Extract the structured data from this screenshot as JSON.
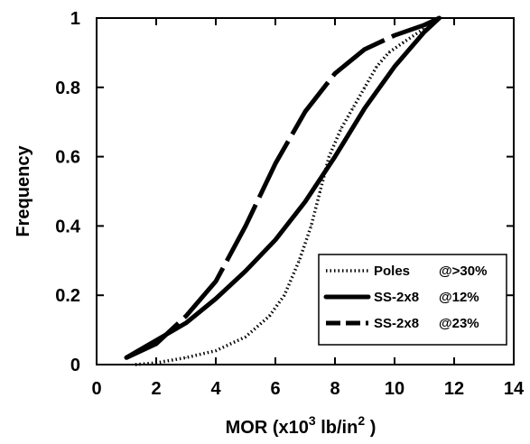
{
  "chart_data": {
    "type": "line",
    "xlabel_main": "MOR (x10",
    "xlabel_sup": "3",
    "xlabel_unit": " lb/in",
    "xlabel_unit_sup": "2",
    "xlabel_close": " )",
    "ylabel": "Frequency",
    "xlim": [
      0,
      14
    ],
    "ylim": [
      0,
      1
    ],
    "x_ticks": [
      0,
      2,
      4,
      6,
      8,
      10,
      12,
      14
    ],
    "x_tick_labels": [
      "0",
      "2",
      "4",
      "6",
      "8",
      "10",
      "12",
      "14"
    ],
    "y_ticks": [
      0,
      0.2,
      0.4,
      0.6,
      0.8,
      1
    ],
    "y_tick_labels": [
      "0",
      "0.2",
      "0.4",
      "0.6",
      "0.8",
      "1"
    ],
    "grid": false,
    "legend_position": "bottom-right",
    "series": [
      {
        "name": "Poles",
        "legend_suffix": "@>30%",
        "style": "dotted",
        "color": "#000000",
        "x": [
          1.3,
          2.0,
          3.0,
          4.0,
          5.0,
          5.8,
          6.3,
          6.8,
          7.2,
          7.5,
          7.8,
          8.2,
          8.6,
          9.0,
          9.4,
          9.8,
          10.3,
          11.0
        ],
        "y": [
          0.0,
          0.005,
          0.02,
          0.04,
          0.08,
          0.14,
          0.2,
          0.3,
          0.4,
          0.5,
          0.6,
          0.68,
          0.74,
          0.8,
          0.86,
          0.9,
          0.93,
          0.97
        ]
      },
      {
        "name": "SS-2x8",
        "legend_suffix": "@12%",
        "style": "solid",
        "color": "#000000",
        "x": [
          1.0,
          2.0,
          3.0,
          4.0,
          5.0,
          6.0,
          7.0,
          8.0,
          9.0,
          10.0,
          11.0,
          11.5
        ],
        "y": [
          0.02,
          0.07,
          0.12,
          0.19,
          0.27,
          0.36,
          0.47,
          0.6,
          0.74,
          0.86,
          0.96,
          1.0
        ]
      },
      {
        "name": "SS-2x8",
        "legend_suffix": "@23%",
        "style": "dashed",
        "color": "#000000",
        "x": [
          1.0,
          2.0,
          3.0,
          4.0,
          5.0,
          6.0,
          7.0,
          8.0,
          9.0,
          10.0,
          11.0,
          11.5
        ],
        "y": [
          0.02,
          0.06,
          0.14,
          0.24,
          0.4,
          0.58,
          0.73,
          0.84,
          0.91,
          0.95,
          0.98,
          1.0
        ]
      }
    ]
  }
}
